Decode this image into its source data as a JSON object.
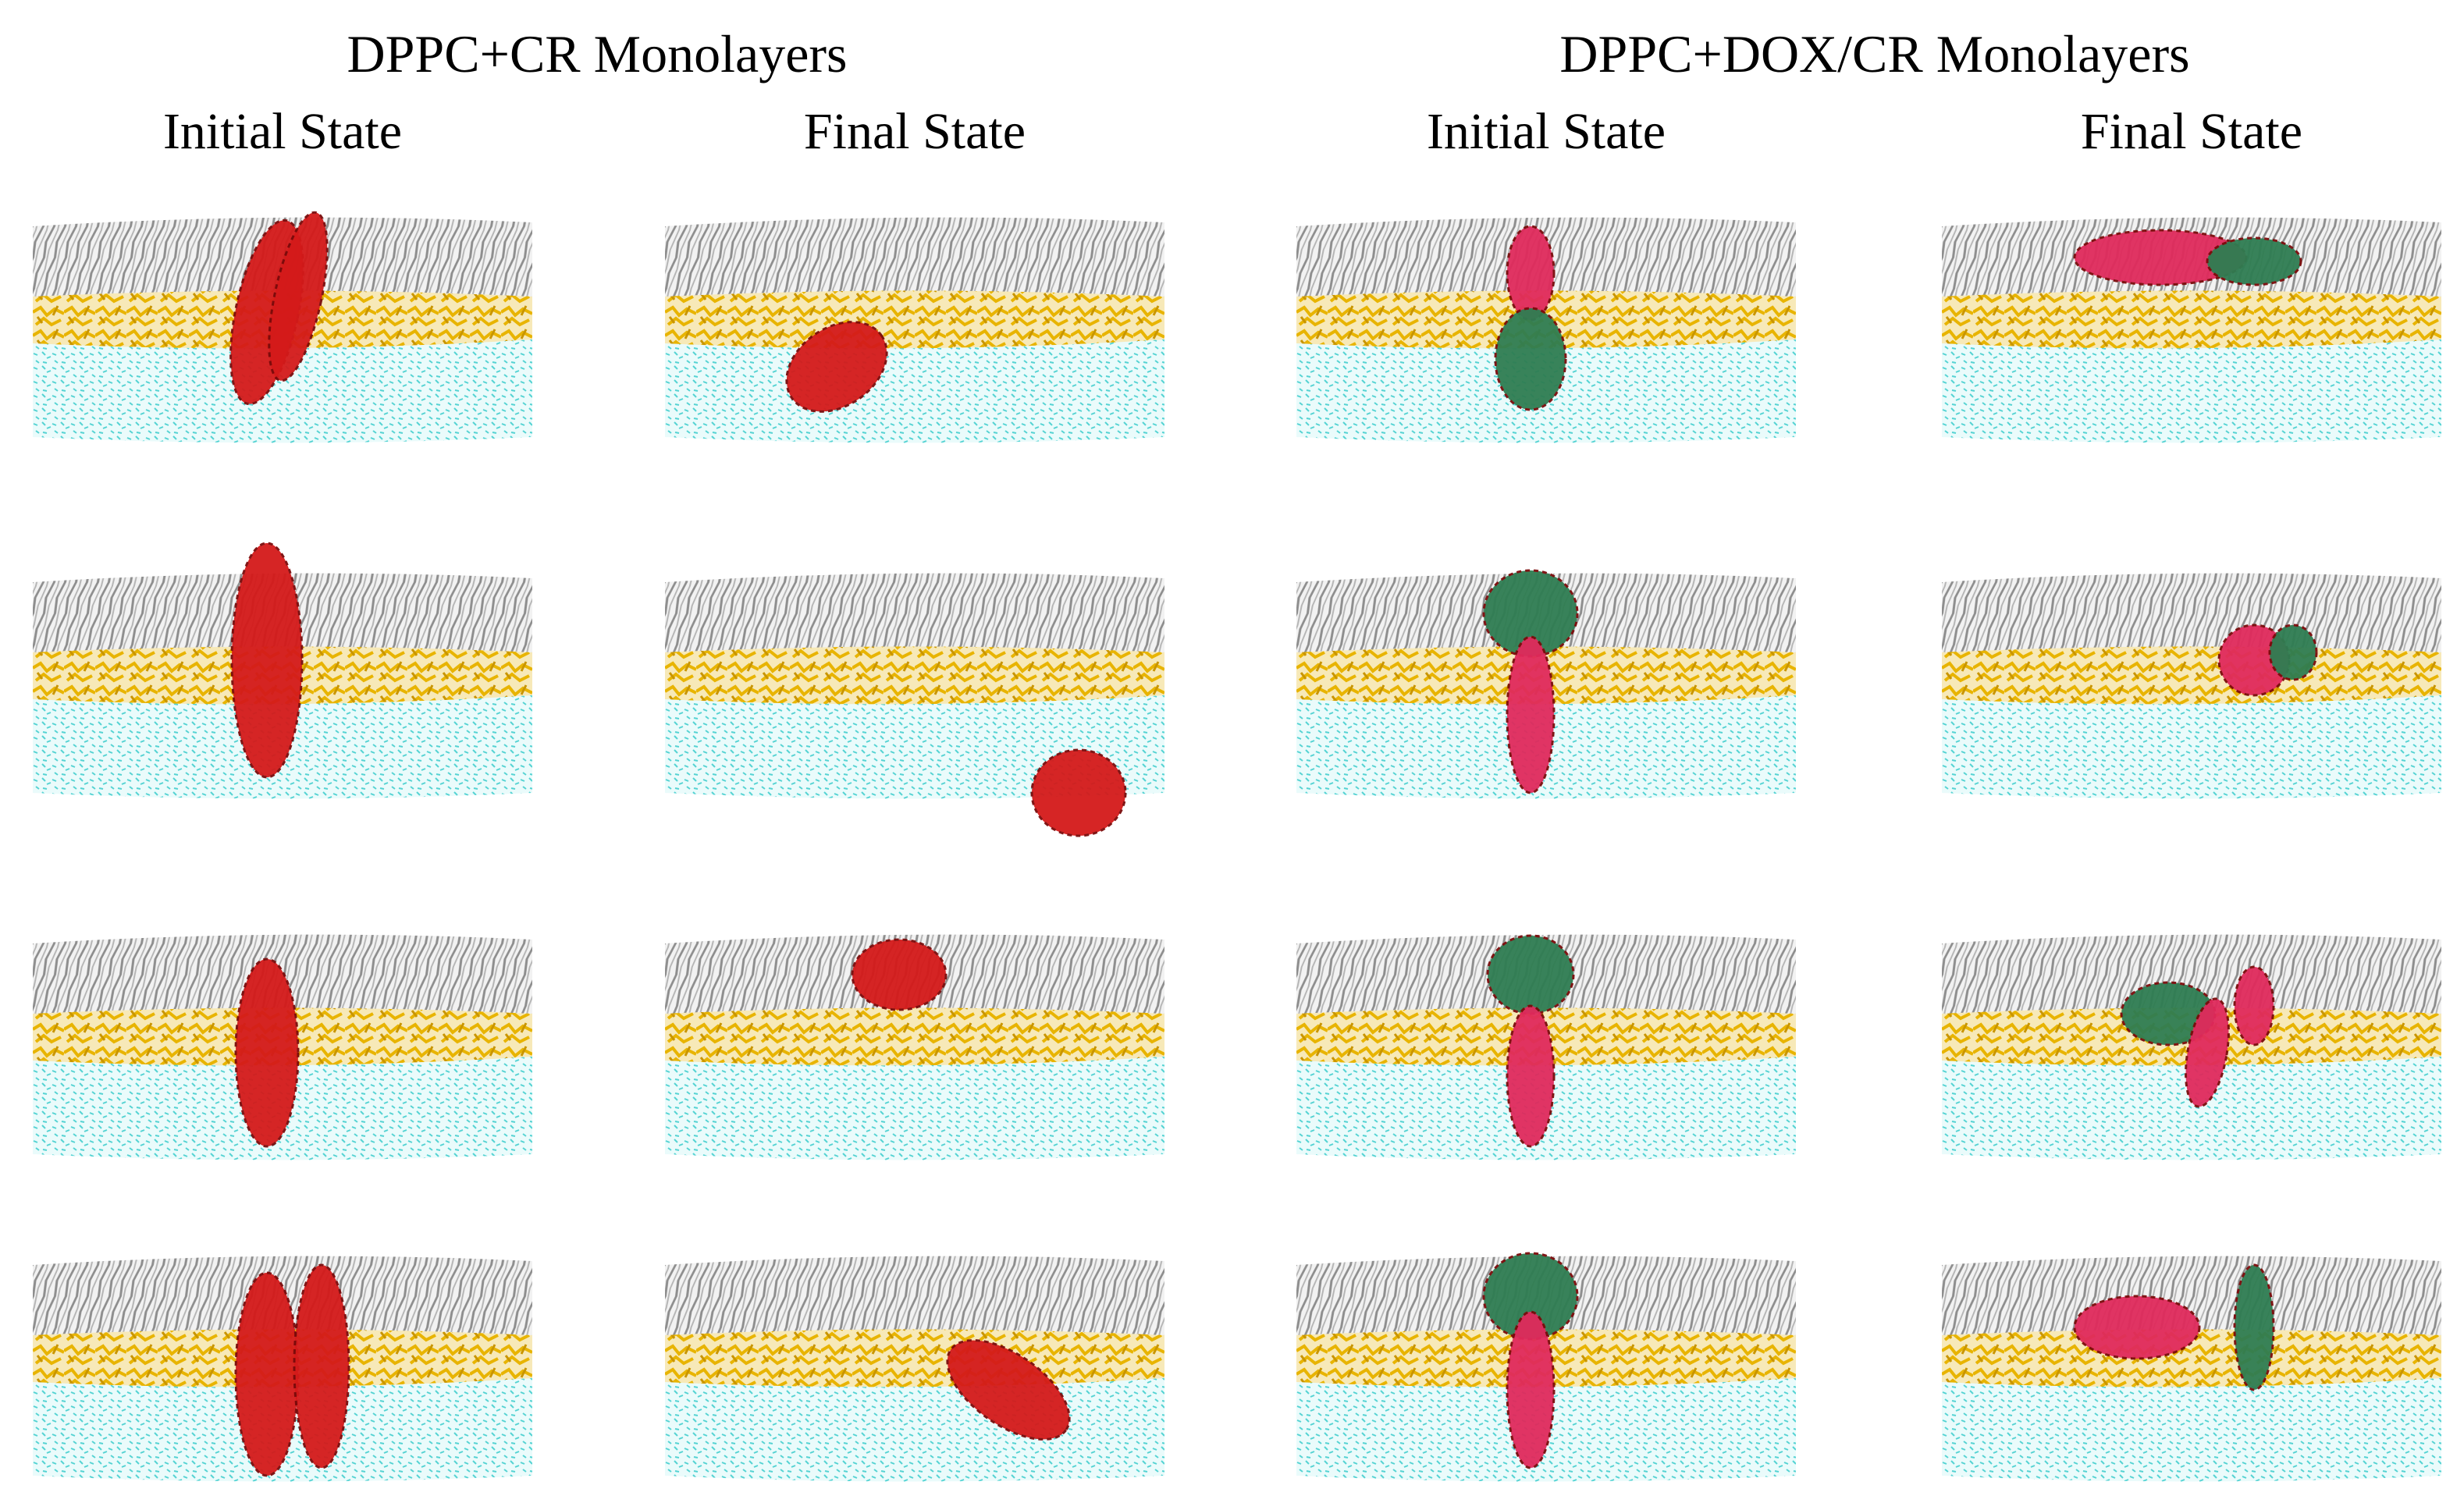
{
  "groups": [
    {
      "title": "DPPC+CR Monolayers",
      "columns": [
        "Initial State",
        "Final State"
      ]
    },
    {
      "title": "DPPC+DOX/CR Monolayers",
      "columns": [
        "Initial State",
        "Final State"
      ]
    }
  ]
}
